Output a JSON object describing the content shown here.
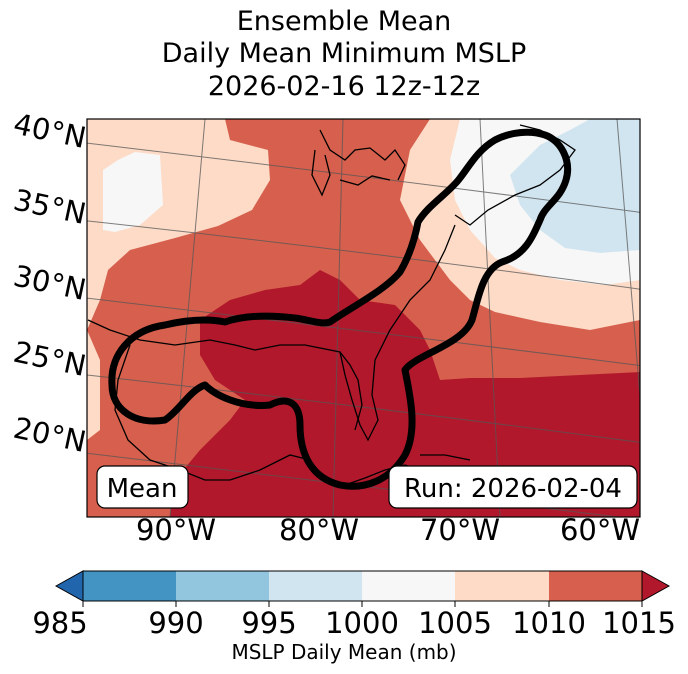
{
  "title": {
    "line1": "Ensemble Mean",
    "line2": "Daily Mean Minimum MSLP",
    "line3": "2026-02-16 12z-12z"
  },
  "map": {
    "lat_labels": [
      "40°N",
      "35°N",
      "30°N",
      "25°N",
      "20°N"
    ],
    "lon_labels": [
      "90°W",
      "80°W",
      "70°W",
      "60°W"
    ],
    "mean_label": "Mean",
    "run_label": "Run: 2026-02-04",
    "contour_color": "#000000",
    "land_outline_color": "#000000"
  },
  "colorbar": {
    "label": "MSLP Daily Mean (mb)",
    "ticks": [
      "985",
      "990",
      "995",
      "1000",
      "1005",
      "1010",
      "1015"
    ],
    "bins": [
      {
        "range": "<985",
        "color": "#2166ac"
      },
      {
        "range": "985-990",
        "color": "#4393c3"
      },
      {
        "range": "990-995",
        "color": "#92c5de"
      },
      {
        "range": "995-1000",
        "color": "#d1e5f0"
      },
      {
        "range": "1000-1005",
        "color": "#f7f7f7"
      },
      {
        "range": "1005-1010",
        "color": "#fddbc7"
      },
      {
        "range": "1010-1015",
        "color": "#d6604d"
      },
      {
        "range": ">1015",
        "color": "#b2182b"
      }
    ]
  }
}
